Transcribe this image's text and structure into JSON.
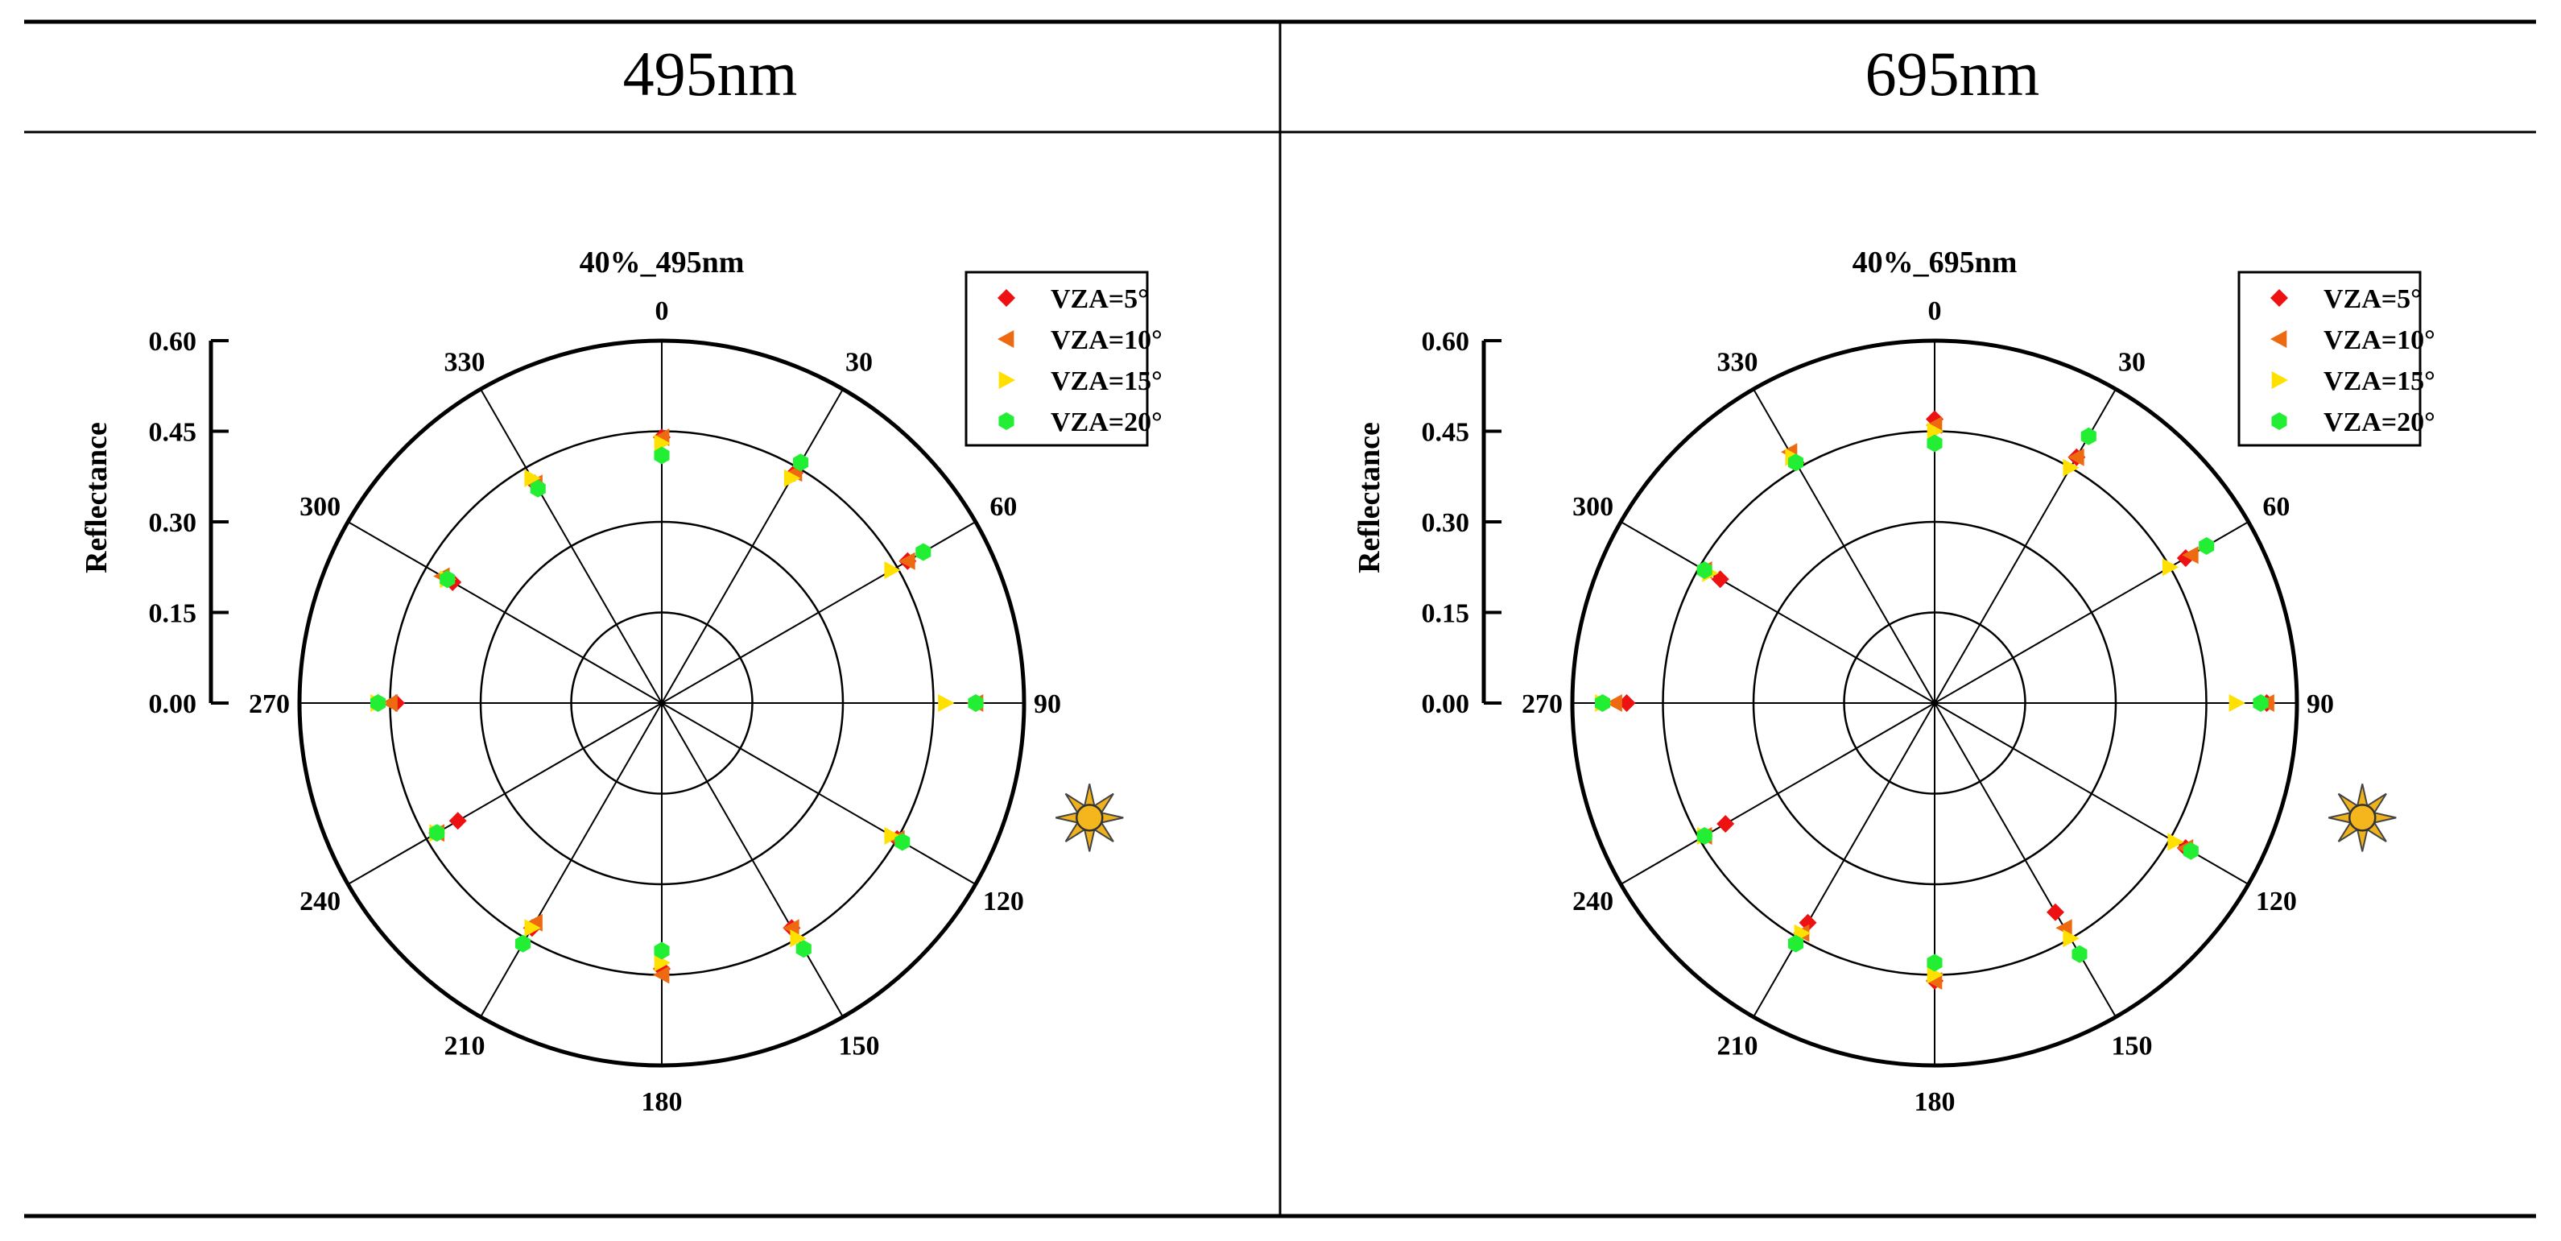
{
  "table": {
    "headers": [
      "495nm",
      "695nm"
    ]
  },
  "chart_data": [
    {
      "type": "scatter",
      "subtype": "polar",
      "title": "40%_495nm",
      "radial_axis_label": "Reflectance",
      "radial_range": [
        0,
        0.6
      ],
      "radial_ticks": [
        "0.00",
        "0.15",
        "0.30",
        "0.45",
        "0.60"
      ],
      "grid_circles": [
        0.15,
        0.3,
        0.45,
        0.6
      ],
      "angle_labels": [
        "0",
        "30",
        "60",
        "90",
        "120",
        "150",
        "180",
        "210",
        "240",
        "270",
        "300",
        "330"
      ],
      "sun_azimuth": 105,
      "legend_position": "top-right",
      "series": [
        {
          "name": "VZA=5°",
          "color": "#ee1111",
          "marker": "diamond",
          "angles": [
            0,
            30,
            60,
            90,
            120,
            150,
            180,
            210,
            240,
            270,
            300,
            330
          ],
          "values": [
            0.44,
            0.44,
            0.47,
            0.52,
            0.45,
            0.43,
            0.44,
            0.43,
            0.39,
            0.44,
            0.4,
            0.42
          ]
        },
        {
          "name": "VZA=10°",
          "color": "#ee6a10",
          "marker": "triangle-left",
          "angles": [
            0,
            30,
            60,
            90,
            120,
            150,
            180,
            210,
            240,
            270,
            300,
            330
          ],
          "values": [
            0.44,
            0.44,
            0.47,
            0.52,
            0.45,
            0.43,
            0.45,
            0.42,
            0.43,
            0.45,
            0.42,
            0.42
          ]
        },
        {
          "name": "VZA=15°",
          "color": "#ffe000",
          "marker": "triangle-right",
          "angles": [
            0,
            30,
            60,
            90,
            120,
            150,
            180,
            210,
            240,
            270,
            300,
            330
          ],
          "values": [
            0.43,
            0.43,
            0.44,
            0.47,
            0.44,
            0.45,
            0.43,
            0.43,
            0.43,
            0.47,
            0.41,
            0.43
          ]
        },
        {
          "name": "VZA=20°",
          "color": "#22ee33",
          "marker": "hexagon",
          "angles": [
            0,
            30,
            60,
            90,
            120,
            150,
            180,
            210,
            240,
            270,
            300,
            330
          ],
          "values": [
            0.41,
            0.46,
            0.5,
            0.52,
            0.46,
            0.47,
            0.41,
            0.46,
            0.43,
            0.47,
            0.41,
            0.41
          ]
        }
      ]
    },
    {
      "type": "scatter",
      "subtype": "polar",
      "title": "40%_695nm",
      "radial_axis_label": "Reflectance",
      "radial_range": [
        0,
        0.6
      ],
      "radial_ticks": [
        "0.00",
        "0.15",
        "0.30",
        "0.45",
        "0.60"
      ],
      "grid_circles": [
        0.15,
        0.3,
        0.45,
        0.6
      ],
      "angle_labels": [
        "0",
        "30",
        "60",
        "90",
        "120",
        "150",
        "180",
        "210",
        "240",
        "270",
        "300",
        "330"
      ],
      "sun_azimuth": 105,
      "legend_position": "top-right",
      "series": [
        {
          "name": "VZA=5°",
          "color": "#ee1111",
          "marker": "diamond",
          "angles": [
            0,
            30,
            60,
            90,
            120,
            150,
            180,
            210,
            240,
            270,
            300,
            330
          ],
          "values": [
            0.47,
            0.47,
            0.48,
            0.55,
            0.48,
            0.4,
            0.46,
            0.42,
            0.4,
            0.51,
            0.41,
            0.46
          ]
        },
        {
          "name": "VZA=10°",
          "color": "#ee6a10",
          "marker": "triangle-left",
          "angles": [
            0,
            30,
            60,
            90,
            120,
            150,
            180,
            210,
            240,
            270,
            300,
            330
          ],
          "values": [
            0.46,
            0.47,
            0.49,
            0.55,
            0.48,
            0.43,
            0.46,
            0.44,
            0.44,
            0.53,
            0.44,
            0.48
          ]
        },
        {
          "name": "VZA=15°",
          "color": "#ffe000",
          "marker": "triangle-right",
          "angles": [
            0,
            30,
            60,
            90,
            120,
            150,
            180,
            210,
            240,
            270,
            300,
            330
          ],
          "values": [
            0.45,
            0.45,
            0.45,
            0.5,
            0.46,
            0.45,
            0.45,
            0.44,
            0.44,
            0.55,
            0.43,
            0.47
          ]
        },
        {
          "name": "VZA=20°",
          "color": "#22ee33",
          "marker": "hexagon",
          "angles": [
            0,
            30,
            60,
            90,
            120,
            150,
            180,
            210,
            240,
            270,
            300,
            330
          ],
          "values": [
            0.43,
            0.51,
            0.52,
            0.54,
            0.49,
            0.48,
            0.43,
            0.46,
            0.44,
            0.55,
            0.44,
            0.46
          ]
        }
      ]
    }
  ]
}
